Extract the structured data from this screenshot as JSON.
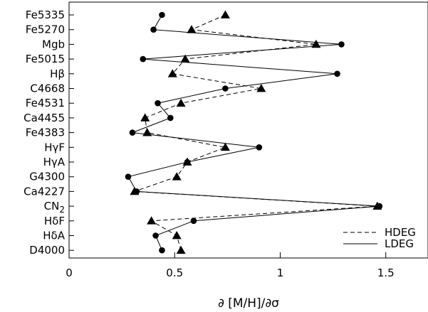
{
  "chart_data": {
    "type": "line",
    "xlabel": "∂ [M/H]/∂σ",
    "xlim": [
      0,
      1.7
    ],
    "xticks": [
      {
        "value": 0,
        "label": "0"
      },
      {
        "value": 0.5,
        "label": "0.5"
      },
      {
        "value": 1,
        "label": "1"
      },
      {
        "value": 1.5,
        "label": "1.5"
      }
    ],
    "categories": [
      "Fe5335",
      "Fe5270",
      "Mgb",
      "Fe5015",
      "Hβ",
      "C4668",
      "Fe4531",
      "Ca4455",
      "Fe4383",
      "HγF",
      "HγA",
      "G4300",
      "Ca4227",
      "CN2",
      "HδF",
      "HδA",
      "D4000"
    ],
    "series": [
      {
        "name": "HDEG",
        "marker": "triangle",
        "dash": "dashed",
        "values": [
          0.74,
          0.58,
          1.17,
          0.55,
          0.49,
          0.91,
          0.53,
          0.36,
          0.37,
          0.74,
          0.56,
          0.51,
          0.31,
          1.46,
          0.39,
          0.51,
          0.53
        ]
      },
      {
        "name": "LDEG",
        "marker": "circle",
        "dash": "solid",
        "values": [
          0.44,
          0.4,
          1.29,
          0.35,
          1.27,
          0.74,
          0.42,
          0.48,
          0.3,
          0.9,
          0.56,
          0.28,
          0.32,
          1.47,
          0.59,
          0.41,
          0.44
        ]
      }
    ],
    "legend_position": "bottom-right",
    "grid": false
  }
}
